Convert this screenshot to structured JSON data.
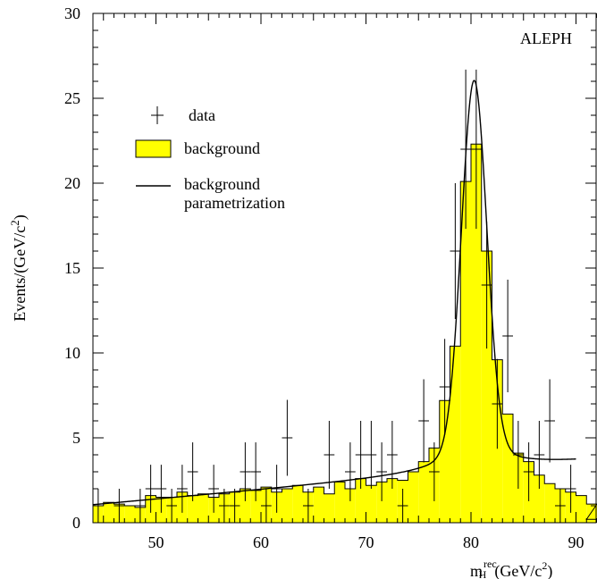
{
  "chart_data": {
    "type": "bar",
    "title": "",
    "experiment_label": "ALEPH",
    "ylabel": {
      "main": "Events/(GeV/c",
      "sup": "2",
      "tail": ")"
    },
    "xlabel": {
      "m": "m",
      "sup": "rec",
      "sub": "H",
      "unit": "(GeV/c",
      "unit_sup": "2",
      "unit_tail": ")"
    },
    "xlim": [
      44,
      92
    ],
    "ylim": [
      0,
      30
    ],
    "x_ticks": [
      50,
      60,
      70,
      80,
      90
    ],
    "x_tick_labels": [
      "50",
      "60",
      "70",
      "80",
      "90"
    ],
    "y_ticks": [
      0,
      5,
      10,
      15,
      20,
      25,
      30
    ],
    "y_tick_labels": [
      "0",
      "5",
      "10",
      "15",
      "20",
      "25",
      "30"
    ],
    "legend": {
      "placement": "top-left",
      "entries": [
        {
          "label": "data",
          "kind": "errorbar"
        },
        {
          "label": "background",
          "kind": "filled"
        },
        {
          "label_lines": [
            "background",
            "parametrization"
          ],
          "kind": "line"
        }
      ]
    },
    "colors": {
      "fill": "#ffff00",
      "stroke": "#000000"
    },
    "series": [
      {
        "name": "background",
        "kind": "histogram",
        "bin_width": 1,
        "bin_start": 44,
        "values": [
          1.0,
          1.2,
          1.1,
          1.0,
          0.9,
          1.6,
          1.5,
          1.5,
          1.8,
          1.6,
          1.7,
          1.5,
          1.7,
          1.8,
          2.0,
          1.9,
          2.1,
          1.8,
          2.0,
          2.2,
          1.8,
          2.1,
          1.7,
          2.4,
          2.0,
          2.6,
          2.2,
          2.4,
          2.6,
          2.5,
          3.0,
          3.6,
          4.4,
          7.2,
          10.4,
          20.1,
          22.3,
          16.0,
          9.6,
          6.4,
          4.1,
          3.6,
          2.8,
          2.3,
          2.0,
          1.8,
          1.6,
          1.1
        ],
        "tail": {
          "x0": 91,
          "x1": 92,
          "value": 0.2
        }
      },
      {
        "name": "data",
        "kind": "errorbar",
        "points": [
          {
            "x": 44.5,
            "y": 1
          },
          {
            "x": 46.5,
            "y": 1
          },
          {
            "x": 48.5,
            "y": 1
          },
          {
            "x": 49.5,
            "y": 2
          },
          {
            "x": 50.5,
            "y": 2
          },
          {
            "x": 51.5,
            "y": 1
          },
          {
            "x": 52.5,
            "y": 2
          },
          {
            "x": 53.5,
            "y": 3
          },
          {
            "x": 55.5,
            "y": 2
          },
          {
            "x": 56.5,
            "y": 1
          },
          {
            "x": 57.5,
            "y": 1
          },
          {
            "x": 58.5,
            "y": 3
          },
          {
            "x": 59.5,
            "y": 3
          },
          {
            "x": 60.5,
            "y": 1
          },
          {
            "x": 61.5,
            "y": 2
          },
          {
            "x": 62.5,
            "y": 5
          },
          {
            "x": 64.5,
            "y": 1
          },
          {
            "x": 66.5,
            "y": 4
          },
          {
            "x": 68.5,
            "y": 3
          },
          {
            "x": 69.5,
            "y": 4
          },
          {
            "x": 70.5,
            "y": 4
          },
          {
            "x": 71.5,
            "y": 3
          },
          {
            "x": 72.5,
            "y": 4
          },
          {
            "x": 73.5,
            "y": 1
          },
          {
            "x": 75.5,
            "y": 6
          },
          {
            "x": 76.5,
            "y": 3
          },
          {
            "x": 77.5,
            "y": 8
          },
          {
            "x": 78.5,
            "y": 16
          },
          {
            "x": 79.5,
            "y": 22
          },
          {
            "x": 80.5,
            "y": 22
          },
          {
            "x": 81.5,
            "y": 14
          },
          {
            "x": 82.5,
            "y": 7
          },
          {
            "x": 83.5,
            "y": 11
          },
          {
            "x": 84.5,
            "y": 4
          },
          {
            "x": 85.5,
            "y": 3
          },
          {
            "x": 86.5,
            "y": 4
          },
          {
            "x": 87.5,
            "y": 6
          },
          {
            "x": 88.5,
            "y": 1
          },
          {
            "x": 89.5,
            "y": 2
          }
        ]
      },
      {
        "name": "background parametrization",
        "kind": "line",
        "curve": {
          "base_a": 1.05,
          "base_slope": 0.055,
          "base_x0": 44,
          "peak_x": 80.3,
          "peak_height": 21.5,
          "peak_width": 1.2,
          "tail_amp": 1.5,
          "tail_width": 3.5,
          "x_end": 90
        }
      }
    ]
  }
}
